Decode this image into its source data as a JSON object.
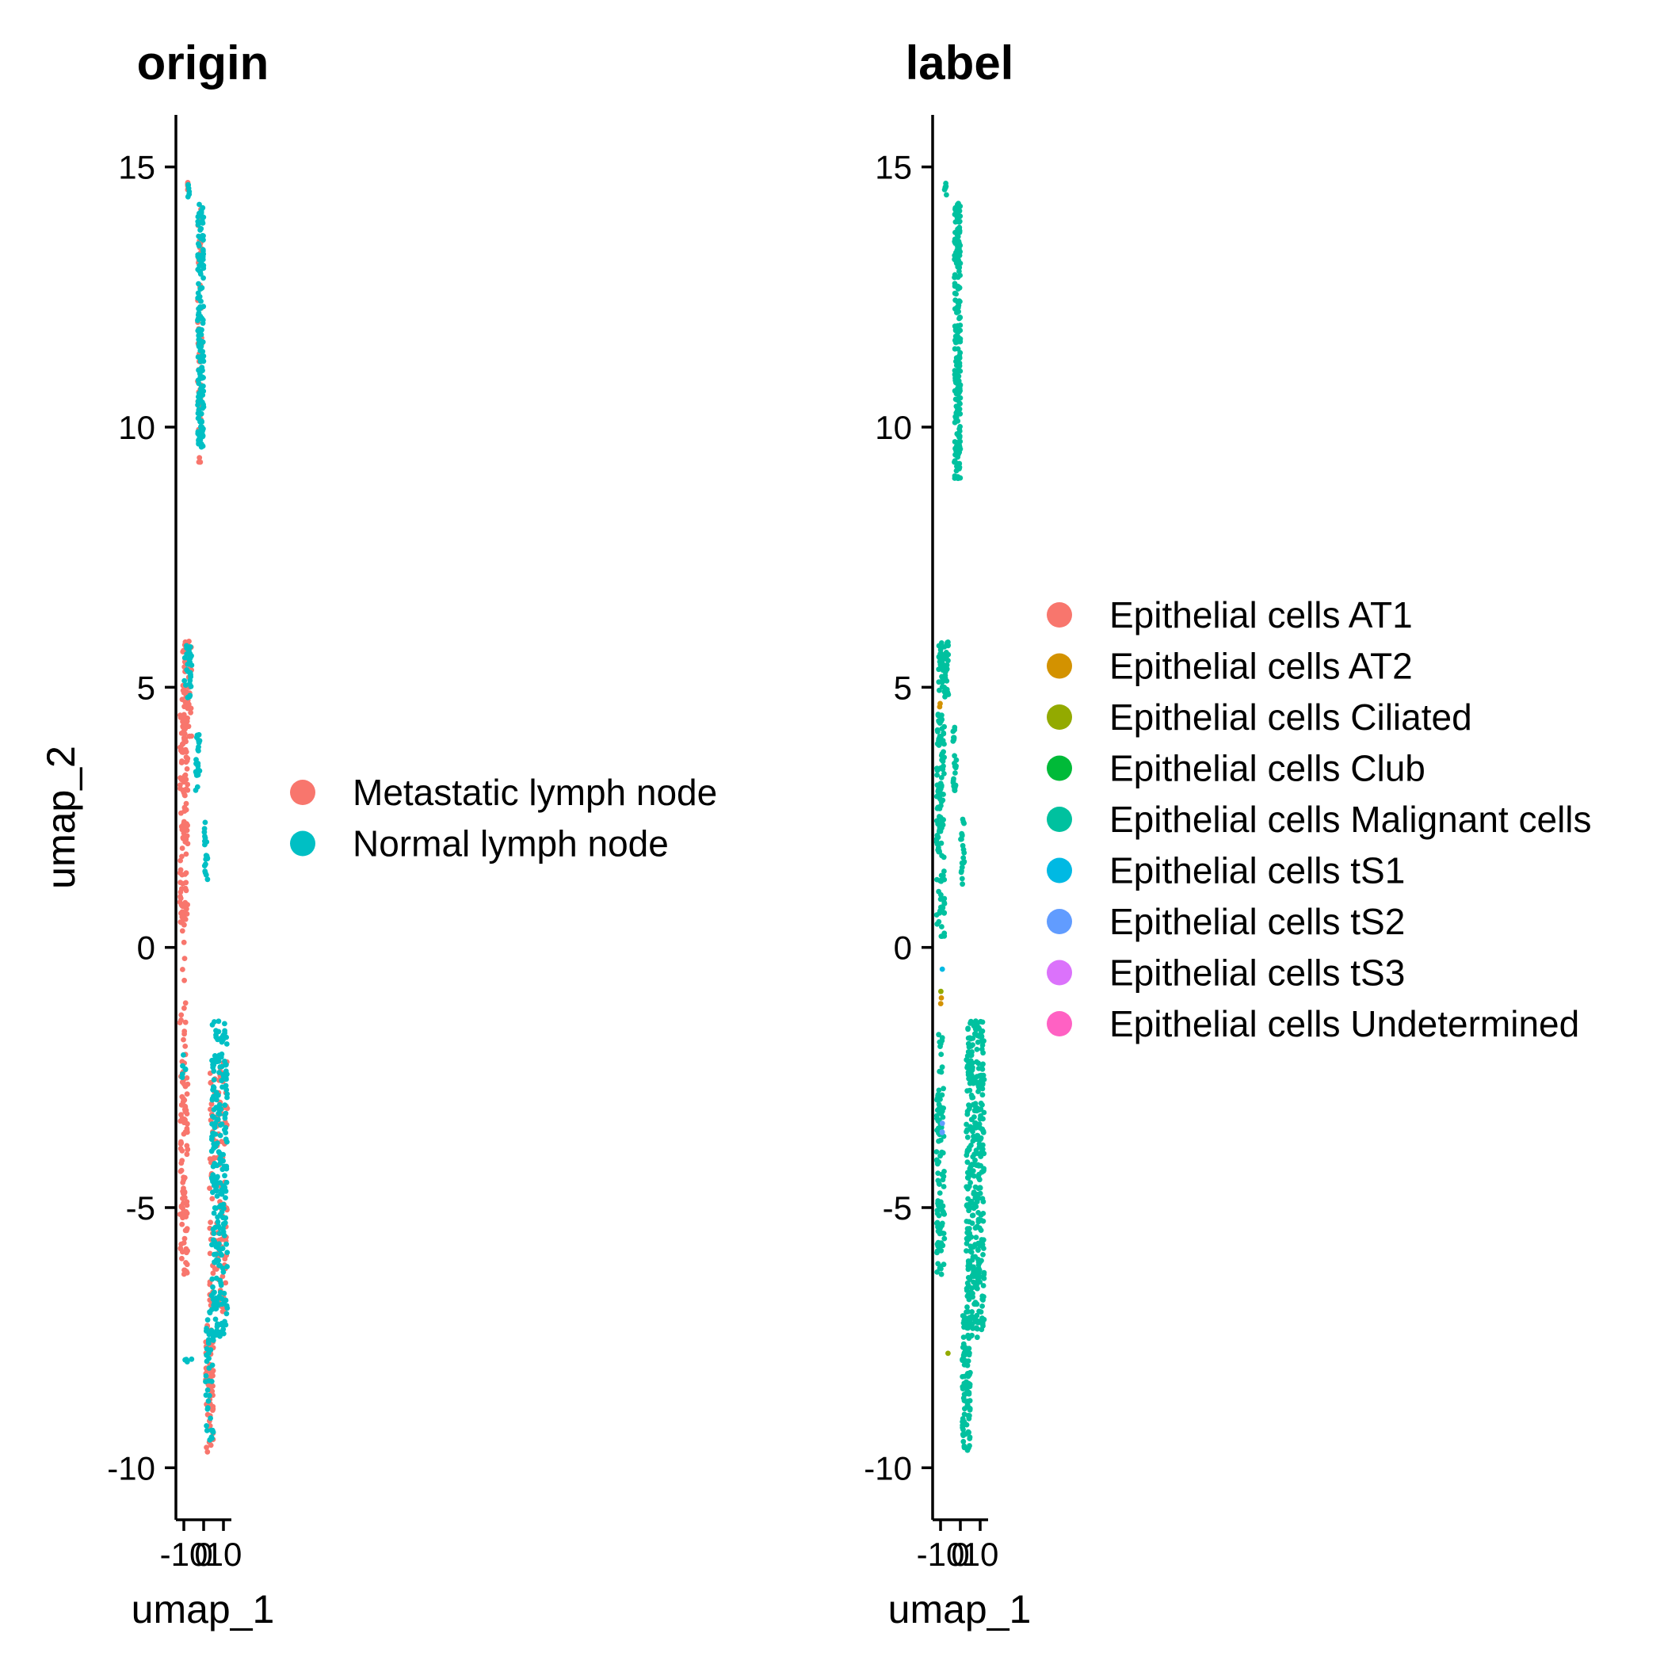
{
  "chart_data": [
    {
      "type": "scatter",
      "title": "origin",
      "xlabel": "umap_1",
      "ylabel": "umap_2",
      "xlim": [
        -12,
        12
      ],
      "ylim": [
        -11,
        16
      ],
      "x_ticks": [
        -10,
        0,
        10
      ],
      "x_tick_labels": [
        "-10",
        "0",
        "10"
      ],
      "y_ticks": [
        -10,
        -5,
        0,
        5,
        10,
        15
      ],
      "y_tick_labels": [
        "-10",
        "-5",
        "0",
        "5",
        "10",
        "15"
      ],
      "grid": false,
      "legend_position": "right",
      "series": [
        {
          "name": "Metastatic lymph node",
          "color": "#F8766D",
          "clusters": [
            {
              "x": [
                -8,
                -8
              ],
              "y": [
                14.5,
                14.7
              ],
              "n": 6
            },
            {
              "x": [
                -3,
                -1
              ],
              "y": [
                9.3,
                14.2
              ],
              "n": 60
            },
            {
              "x": [
                -11,
                -6
              ],
              "y": [
                4.0,
                5.9
              ],
              "n": 50
            },
            {
              "x": [
                -12,
                -8
              ],
              "y": [
                0.3,
                4.5
              ],
              "n": 110
            },
            {
              "x": [
                -12,
                -9
              ],
              "y": [
                -2.5,
                0.3
              ],
              "n": 20
            },
            {
              "x": [
                -12,
                -8
              ],
              "y": [
                -6.3,
                -2.5
              ],
              "n": 90
            },
            {
              "x": [
                3,
                12
              ],
              "y": [
                -7.0,
                -2.0
              ],
              "n": 120
            },
            {
              "x": [
                1,
                5
              ],
              "y": [
                -9.7,
                -7.2
              ],
              "n": 60
            }
          ]
        },
        {
          "name": "Normal lymph node",
          "color": "#00BFC4",
          "clusters": [
            {
              "x": [
                -8,
                -7
              ],
              "y": [
                14.4,
                14.7
              ],
              "n": 6
            },
            {
              "x": [
                -3,
                0
              ],
              "y": [
                9.6,
                14.3
              ],
              "n": 160
            },
            {
              "x": [
                -10,
                -6
              ],
              "y": [
                4.8,
                5.9
              ],
              "n": 30
            },
            {
              "x": [
                -4,
                -2
              ],
              "y": [
                3.0,
                4.2
              ],
              "n": 25
            },
            {
              "x": [
                0,
                2
              ],
              "y": [
                1.3,
                2.5
              ],
              "n": 20
            },
            {
              "x": [
                -11,
                -9
              ],
              "y": [
                -2.5,
                -2.0
              ],
              "n": 6
            },
            {
              "x": [
                -10,
                -6
              ],
              "y": [
                -8.0,
                -7.9
              ],
              "n": 4
            },
            {
              "x": [
                4,
                12
              ],
              "y": [
                -7.5,
                -1.4
              ],
              "n": 240
            },
            {
              "x": [
                1,
                5
              ],
              "y": [
                -9.5,
                -7.0
              ],
              "n": 40
            }
          ]
        }
      ]
    },
    {
      "type": "scatter",
      "title": "label",
      "xlabel": "umap_1",
      "ylabel": "umap_2",
      "xlim": [
        -12,
        12
      ],
      "ylim": [
        -11,
        16
      ],
      "x_ticks": [
        -10,
        0,
        10
      ],
      "x_tick_labels": [
        "-10",
        "0",
        "10"
      ],
      "y_ticks": [
        -10,
        -5,
        0,
        5,
        10,
        15
      ],
      "y_tick_labels": [
        "-10",
        "-5",
        "0",
        "5",
        "10",
        "15"
      ],
      "grid": false,
      "legend_position": "right",
      "series": [
        {
          "name": "Epithelial cells AT1",
          "color": "#F8766D",
          "clusters": []
        },
        {
          "name": "Epithelial cells AT2",
          "color": "#D39200",
          "clusters": [
            {
              "x": [
                -11,
                -10
              ],
              "y": [
                4.5,
                4.7
              ],
              "n": 2
            },
            {
              "x": [
                -10,
                -9
              ],
              "y": [
                -1.4,
                -0.9
              ],
              "n": 2
            }
          ]
        },
        {
          "name": "Epithelial cells Ciliated",
          "color": "#93AA00",
          "clusters": [
            {
              "x": [
                -10,
                -9
              ],
              "y": [
                -0.9,
                -0.8
              ],
              "n": 1
            },
            {
              "x": [
                -7,
                -6
              ],
              "y": [
                -7.9,
                -7.8
              ],
              "n": 1
            }
          ]
        },
        {
          "name": "Epithelial cells Club",
          "color": "#00BA38",
          "clusters": []
        },
        {
          "name": "Epithelial cells Malignant cells",
          "color": "#00C19F",
          "clusters": [
            {
              "x": [
                -8,
                -7
              ],
              "y": [
                14.4,
                14.7
              ],
              "n": 8
            },
            {
              "x": [
                -3,
                0
              ],
              "y": [
                9.0,
                14.3
              ],
              "n": 220
            },
            {
              "x": [
                -11,
                -6
              ],
              "y": [
                4.8,
                5.9
              ],
              "n": 60
            },
            {
              "x": [
                -12,
                -8
              ],
              "y": [
                0.2,
                4.5
              ],
              "n": 120
            },
            {
              "x": [
                -4,
                -2
              ],
              "y": [
                3.0,
                4.3
              ],
              "n": 25
            },
            {
              "x": [
                0,
                2
              ],
              "y": [
                1.2,
                2.5
              ],
              "n": 20
            },
            {
              "x": [
                -11,
                -9
              ],
              "y": [
                -2.5,
                -1.6
              ],
              "n": 10
            },
            {
              "x": [
                -12,
                -8
              ],
              "y": [
                -6.3,
                -2.7
              ],
              "n": 100
            },
            {
              "x": [
                3,
                12
              ],
              "y": [
                -7.5,
                -1.4
              ],
              "n": 380
            },
            {
              "x": [
                1,
                5
              ],
              "y": [
                -9.7,
                -7.0
              ],
              "n": 100
            }
          ]
        },
        {
          "name": "Epithelial cells tS1",
          "color": "#00B9E3",
          "clusters": [
            {
              "x": [
                -10,
                -9
              ],
              "y": [
                -0.5,
                -0.4
              ],
              "n": 1
            }
          ]
        },
        {
          "name": "Epithelial cells tS2",
          "color": "#619CFF",
          "clusters": [
            {
              "x": [
                -10,
                -9
              ],
              "y": [
                -3.6,
                -3.3
              ],
              "n": 3
            }
          ]
        },
        {
          "name": "Epithelial cells tS3",
          "color": "#DB72FB",
          "clusters": []
        },
        {
          "name": "Epithelial cells Undetermined",
          "color": "#FF61C3",
          "clusters": []
        }
      ]
    }
  ]
}
